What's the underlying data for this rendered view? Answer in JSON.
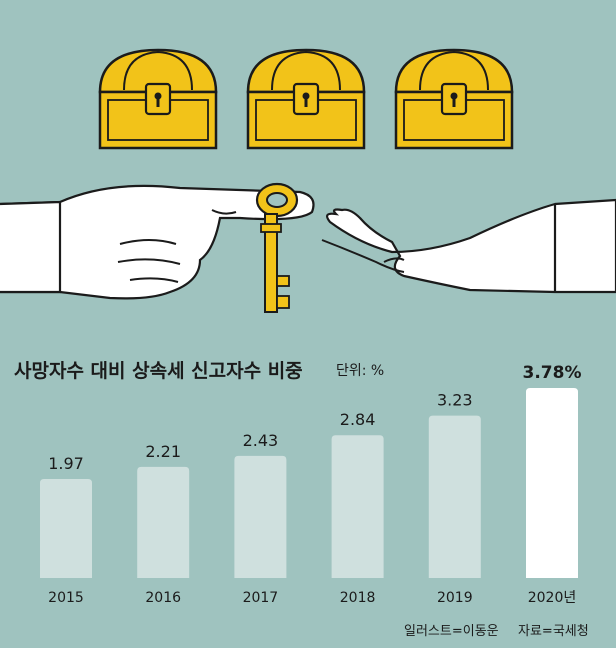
{
  "chart_data": {
    "type": "bar",
    "title": "사망자수 대비 상속세 신고자수 비중",
    "unit_label": "단위: %",
    "categories": [
      "2015",
      "2016",
      "2017",
      "2018",
      "2019",
      "2020년"
    ],
    "values": [
      1.97,
      2.21,
      2.43,
      2.84,
      3.23,
      3.78
    ],
    "value_labels": [
      "1.97",
      "2.21",
      "2.43",
      "2.84",
      "3.23",
      "3.78%"
    ],
    "highlight_index": 5,
    "ylim": [
      0,
      3.78
    ],
    "grid": false,
    "colors": {
      "background": "#9fc3bf",
      "bar": "#cfe0de",
      "highlight_bar": "#ffffff",
      "text": "#1b1b1b",
      "chest": "#f2c319"
    }
  },
  "credits": {
    "illustration": "일러스트=이동운",
    "source": "자료=국세청"
  },
  "illustration": {
    "icons": [
      "treasure-chest-icon",
      "treasure-chest-icon",
      "treasure-chest-icon",
      "key-icon",
      "giving-hand-icon",
      "receiving-hand-icon"
    ]
  }
}
